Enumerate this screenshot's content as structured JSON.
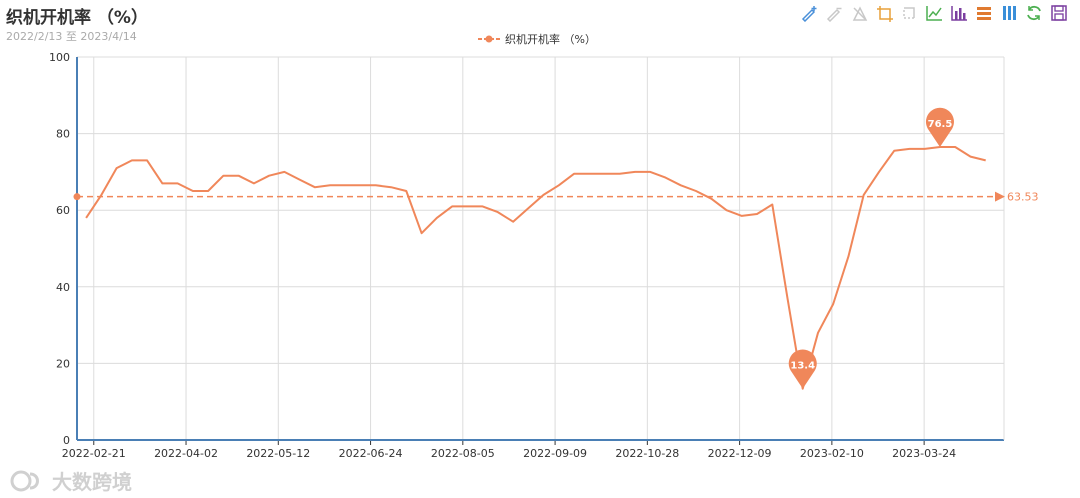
{
  "header": {
    "title": "织机开机率 （%）",
    "subtitle": "2022/2/13 至 2023/4/14"
  },
  "toolbox": [
    {
      "name": "mark-pen-icon",
      "color": "#4a90d9"
    },
    {
      "name": "erase-pen-icon",
      "color": "#c8c8c8"
    },
    {
      "name": "clear-mark-icon",
      "color": "#c8c8c8"
    },
    {
      "name": "zoom-select-icon",
      "color": "#e8a13a"
    },
    {
      "name": "zoom-reset-icon",
      "color": "#c8c8c8"
    },
    {
      "name": "line-chart-icon",
      "color": "#4caf50"
    },
    {
      "name": "bar-chart-icon",
      "color": "#7b3fa0"
    },
    {
      "name": "stack-icon",
      "color": "#e07a30"
    },
    {
      "name": "tiled-icon",
      "color": "#3a8fd9"
    },
    {
      "name": "restore-icon",
      "color": "#4caf50"
    },
    {
      "name": "save-image-icon",
      "color": "#7b3fa0"
    }
  ],
  "watermark": {
    "text": "大数跨境"
  },
  "chart_data": {
    "type": "line",
    "title": "织机开机率 （%）",
    "subtitle": "2022/2/13 至 2023/4/14",
    "legend": {
      "position": "top-center"
    },
    "grid": true,
    "xlabel": "",
    "ylabel": "",
    "ylim": [
      0,
      100
    ],
    "yticks": [
      0,
      20,
      40,
      60,
      80,
      100
    ],
    "xticks": [
      "2022-02-21",
      "2022-04-02",
      "2022-05-12",
      "2022-06-24",
      "2022-08-05",
      "2022-09-09",
      "2022-10-28",
      "2022-12-09",
      "2023-02-10",
      "2023-03-24"
    ],
    "color": "#f0875a",
    "series": [
      {
        "name": "织机开机率 （%）",
        "values": [
          58.0,
          64.0,
          71.0,
          73.0,
          73.0,
          67.0,
          67.0,
          65.0,
          65.0,
          69.0,
          69.0,
          67.0,
          69.0,
          70.0,
          68.0,
          66.0,
          66.5,
          66.5,
          66.5,
          66.5,
          66.0,
          65.0,
          54.0,
          58.0,
          61.0,
          61.0,
          61.0,
          59.5,
          57.0,
          60.5,
          64.0,
          66.5,
          69.5,
          69.5,
          69.5,
          69.5,
          70.0,
          70.0,
          68.5,
          66.5,
          65.0,
          63.0,
          60.0,
          58.5,
          59.0,
          61.5,
          37.0,
          13.4,
          28.0,
          35.5,
          48.0,
          64.0,
          70.0,
          75.5,
          76.0,
          76.0,
          76.5,
          76.5,
          74.0,
          73.0
        ],
        "max": {
          "label": "76.5",
          "value": 76.5
        },
        "min": {
          "label": "13.4",
          "value": 13.4
        },
        "average": {
          "label": "63.53",
          "value": 63.53
        }
      }
    ]
  }
}
